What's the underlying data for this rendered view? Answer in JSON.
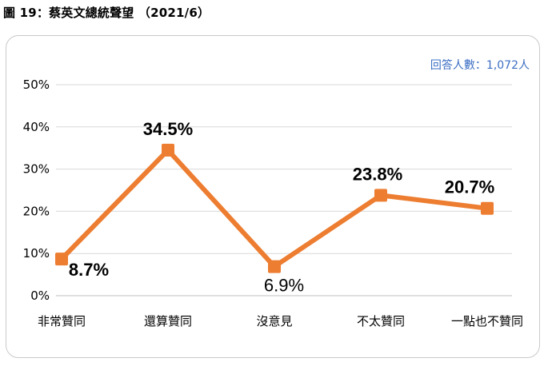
{
  "page": {
    "title": "圖 19：蔡英文總統聲望 （2021/6）",
    "respondents_note": "回答人數：1,072人"
  },
  "colors": {
    "line": "#ed7d31",
    "marker": "#ed7d31",
    "grid": "#d9d9d9",
    "axis": "#bfbfbf",
    "note": "#3b6ec4"
  },
  "chart_data": {
    "type": "line",
    "categories": [
      "非常贊同",
      "還算贊同",
      "沒意見",
      "不太贊同",
      "一點也不贊同"
    ],
    "series": [
      {
        "values": [
          8.7,
          34.5,
          6.9,
          23.8,
          20.7
        ]
      }
    ],
    "data_labels": [
      "8.7%",
      "34.5%",
      "6.9%",
      "23.8%",
      "20.7%"
    ],
    "ylim": [
      0,
      50
    ],
    "yticks": [
      0,
      10,
      20,
      30,
      40,
      50
    ],
    "ytick_labels": [
      "0%",
      "10%",
      "20%",
      "30%",
      "40%",
      "50%"
    ],
    "grid": true,
    "marker": "square"
  }
}
